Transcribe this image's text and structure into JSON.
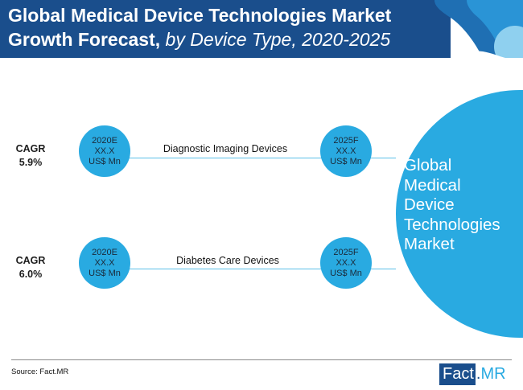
{
  "header": {
    "title_bold": "Global Medical Device Technologies Market",
    "title_line2_bold": "Growth Forecast,",
    "title_line2_italic": " by Device Type, 2020-2025"
  },
  "segments": [
    {
      "cagr_label": "CAGR",
      "cagr_value": "5.9%",
      "name": "Diagnostic Imaging Devices",
      "start": {
        "year": "2020E",
        "value": "XX.X",
        "unit": "US$ Mn"
      },
      "end": {
        "year": "2025F",
        "value": "XX.X",
        "unit": "US$ Mn"
      }
    },
    {
      "cagr_label": "CAGR",
      "cagr_value": "6.0%",
      "name": "Diabetes Care Devices",
      "start": {
        "year": "2020E",
        "value": "XX.X",
        "unit": "US$ Mn"
      },
      "end": {
        "year": "2025F",
        "value": "XX.X",
        "unit": "US$ Mn"
      }
    }
  ],
  "market": {
    "lines": [
      "Global",
      "Medical",
      "Device",
      "Technologies",
      "Market"
    ]
  },
  "footer": {
    "source": "Source: Fact.MR",
    "logo_fact": "Fact",
    "logo_dot": ".",
    "logo_mr": "MR"
  },
  "colors": {
    "header_band": "#1a4e8c",
    "accent_blue": "#29aae1",
    "connector": "#5bbfe8"
  }
}
